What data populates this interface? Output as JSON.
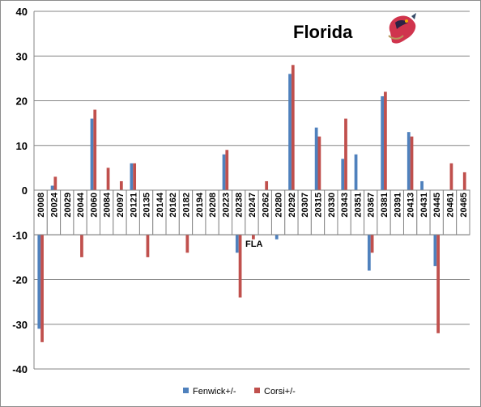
{
  "chart_data": {
    "type": "bar",
    "title": "Florida",
    "annotation": "FLA",
    "logo": "florida-panthers-logo",
    "ylim": [
      -40,
      40
    ],
    "yticks": [
      -40,
      -30,
      -20,
      -10,
      0,
      10,
      20,
      30,
      40
    ],
    "grid": true,
    "legend_position": "bottom",
    "categories": [
      "20008",
      "20024",
      "20029",
      "20044",
      "20060",
      "20084",
      "20097",
      "20121",
      "20135",
      "20144",
      "20162",
      "20182",
      "20194",
      "20208",
      "20223",
      "20238",
      "20247",
      "20262",
      "20280",
      "20292",
      "20307",
      "20315",
      "20330",
      "20343",
      "20351",
      "20367",
      "20381",
      "20391",
      "20413",
      "20431",
      "20445",
      "20461",
      "20465"
    ],
    "series": [
      {
        "name": "Fenwick+/-",
        "color": "#4F81BD",
        "values": [
          -31,
          1,
          -5,
          -6,
          16,
          -2,
          -6,
          6,
          -5,
          -4,
          -5,
          -9,
          -2,
          -3,
          8,
          -14,
          -7,
          -2,
          -11,
          26,
          -8,
          14,
          -4,
          7,
          8,
          -18,
          21,
          -8,
          13,
          2,
          -17,
          -1,
          -3
        ]
      },
      {
        "name": "Corsi+/-",
        "color": "#C0504D",
        "values": [
          -34,
          3,
          -4,
          -15,
          18,
          5,
          2,
          6,
          -15,
          -6,
          -5,
          -14,
          -1,
          -9,
          9,
          -24,
          -11,
          2,
          -10,
          28,
          -5,
          12,
          -5,
          16,
          0,
          -14,
          22,
          -4,
          12,
          -4,
          -32,
          6,
          4
        ]
      }
    ]
  }
}
